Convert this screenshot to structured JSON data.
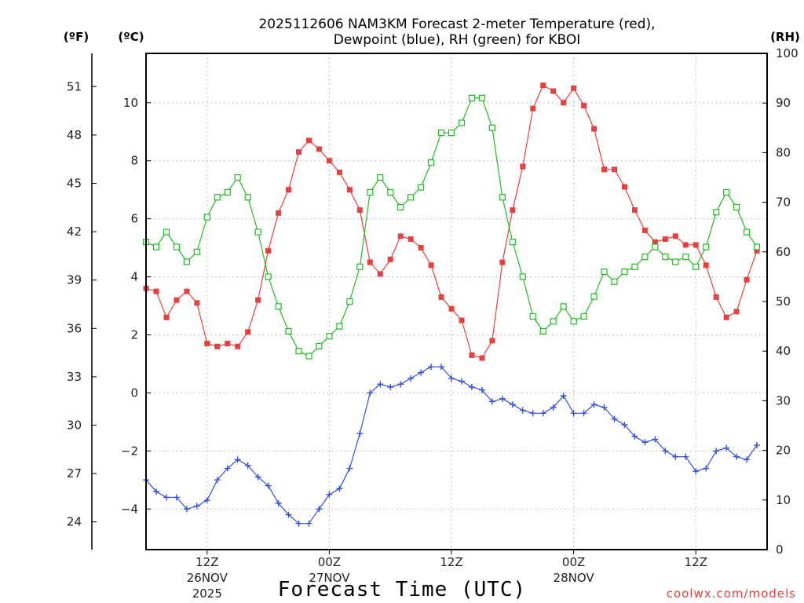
{
  "chart_data": {
    "type": "line",
    "title_lines": [
      "2025112606 NAM3KM Forecast 2-meter Temperature (red),",
      "Dewpoint (blue), RH (green) for KBOI"
    ],
    "xlabel": "Forecast Time (UTC)",
    "credit": "coolwx.com/models",
    "units": {
      "fahrenheit": "(ºF)",
      "celsius": "(ºC)",
      "rh": "(RH)"
    },
    "x_range_hours": [
      0,
      61
    ],
    "x_ticks": [
      {
        "hour": 6,
        "label": "12Z",
        "date": "26NOV",
        "year": "2025"
      },
      {
        "hour": 18,
        "label": "00Z",
        "date": "27NOV",
        "year": ""
      },
      {
        "hour": 30,
        "label": "12Z",
        "date": "",
        "year": ""
      },
      {
        "hour": 42,
        "label": "00Z",
        "date": "28NOV",
        "year": ""
      },
      {
        "hour": 54,
        "label": "12Z",
        "date": "",
        "year": ""
      }
    ],
    "y_celsius": {
      "range": [
        -5.4,
        11.7
      ],
      "ticks": [
        -4,
        -2,
        0,
        2,
        4,
        6,
        8,
        10
      ],
      "labels": [
        "−4",
        "−2",
        "0",
        "2",
        "4",
        "6",
        "8",
        "10"
      ]
    },
    "y_fahrenheit": {
      "ticks": [
        24,
        27,
        30,
        33,
        36,
        39,
        42,
        45,
        48,
        51
      ],
      "labels": [
        "24",
        "27",
        "30",
        "33",
        "36",
        "39",
        "42",
        "45",
        "48",
        "51"
      ]
    },
    "y_rh": {
      "range": [
        0,
        100
      ],
      "ticks": [
        0,
        10,
        20,
        30,
        40,
        50,
        60,
        70,
        80,
        90,
        100
      ],
      "labels": [
        "0",
        "10",
        "20",
        "30",
        "40",
        "50",
        "60",
        "70",
        "80",
        "90",
        "100"
      ]
    },
    "grid": true,
    "series": [
      {
        "name": "2-meter Temperature",
        "unit": "C",
        "color": "#e8403e",
        "marker": "filled-square",
        "values": [
          3.6,
          3.5,
          2.6,
          3.2,
          3.5,
          3.1,
          1.7,
          1.6,
          1.7,
          1.6,
          2.1,
          3.2,
          4.9,
          6.2,
          7.0,
          8.3,
          8.7,
          8.4,
          8.0,
          7.6,
          7.0,
          6.3,
          4.5,
          4.1,
          4.6,
          5.4,
          5.3,
          5.0,
          4.4,
          3.3,
          2.9,
          2.5,
          1.3,
          1.2,
          1.8,
          4.5,
          6.3,
          7.8,
          9.8,
          10.6,
          10.4,
          10.0,
          10.5,
          9.9,
          9.1,
          7.7,
          7.7,
          7.1,
          6.3,
          5.6,
          5.2,
          5.3,
          5.4,
          5.1,
          5.1,
          4.4,
          3.3,
          2.6,
          2.8,
          3.9,
          4.9
        ]
      },
      {
        "name": "Dewpoint",
        "unit": "C",
        "color": "#3450dd",
        "marker": "plus",
        "values": [
          -3.0,
          -3.4,
          -3.6,
          -3.6,
          -4.0,
          -3.9,
          -3.7,
          -3.0,
          -2.6,
          -2.3,
          -2.5,
          -2.9,
          -3.2,
          -3.8,
          -4.2,
          -4.5,
          -4.5,
          -4.0,
          -3.5,
          -3.3,
          -2.6,
          -1.4,
          0.0,
          0.3,
          0.2,
          0.3,
          0.5,
          0.7,
          0.9,
          0.9,
          0.5,
          0.4,
          0.2,
          0.1,
          -0.3,
          -0.2,
          -0.4,
          -0.6,
          -0.7,
          -0.7,
          -0.5,
          -0.1,
          -0.7,
          -0.7,
          -0.4,
          -0.5,
          -0.9,
          -1.1,
          -1.5,
          -1.7,
          -1.6,
          -2.0,
          -2.2,
          -2.2,
          -2.7,
          -2.6,
          -2.0,
          -1.9,
          -2.2,
          -2.3,
          -1.8
        ]
      },
      {
        "name": "RH",
        "unit": "%",
        "color": "#22bb22",
        "marker": "open-square",
        "values": [
          62,
          61,
          64,
          61,
          58,
          60,
          67,
          71,
          72,
          75,
          71,
          64,
          55,
          49,
          44,
          40,
          39,
          41,
          43,
          45,
          50,
          57,
          72,
          75,
          72,
          69,
          71,
          73,
          78,
          84,
          84,
          86,
          91,
          91,
          85,
          71,
          62,
          55,
          47,
          44,
          46,
          49,
          46,
          47,
          51,
          56,
          54,
          56,
          57,
          59,
          61,
          59,
          58,
          59,
          57,
          61,
          68,
          72,
          69,
          64,
          61
        ]
      }
    ]
  }
}
